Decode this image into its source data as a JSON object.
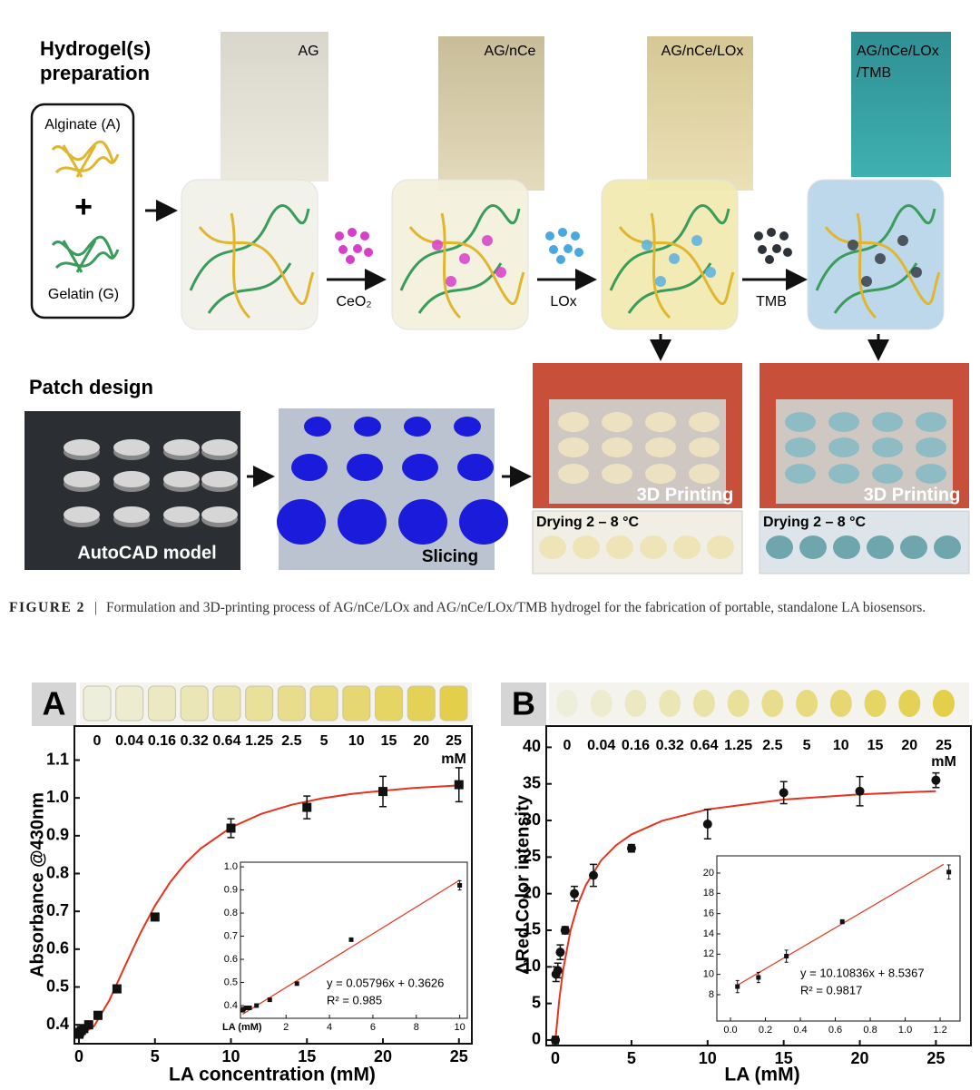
{
  "preparation": {
    "heading": [
      "Hydrogel(s)",
      "preparation"
    ],
    "alginate": "Alginate (A)",
    "plus": "+",
    "gelatin": "Gelatin (G)",
    "photos": [
      [
        "AG"
      ],
      [
        "AG/nCe"
      ],
      [
        "AG/nCe/LOx"
      ],
      [
        "AG/nCe/LOx",
        "/TMB"
      ]
    ],
    "reagents": [
      "CeO₂",
      "LOx",
      "TMB"
    ]
  },
  "patch": {
    "heading": "Patch design",
    "model": "AutoCAD model",
    "slicing": "Slicing",
    "printing": [
      "3D Printing",
      "3D Printing"
    ],
    "drying": [
      "Drying 2 – 8 °C",
      "Drying 2 – 8 °C"
    ]
  },
  "caption": {
    "label": "FIGURE 2",
    "separator": "|",
    "text": "Formulation and 3D-printing process of AG/nCe/LOx and AG/nCe/LOx/TMB hydrogel for the fabrication of portable, standalone LA biosensors."
  },
  "chart_data": [
    {
      "type": "scatter",
      "panel": "A",
      "top_labels": [
        "0",
        "0.04",
        "0.16",
        "0.32",
        "0.64",
        "1.25",
        "2.5",
        "5",
        "10",
        "15",
        "20",
        "25"
      ],
      "top_unit": "mM",
      "xlabel": "LA concentration (mM)",
      "ylabel": "Absorbance @430nm",
      "xlim": [
        -0.3,
        25.85
      ],
      "ylim": [
        0.35,
        1.19
      ],
      "xticks": [
        0,
        5,
        10,
        15,
        20,
        25
      ],
      "yticks": [
        0.4,
        0.5,
        0.6,
        0.7,
        0.8,
        0.9,
        {
          "value": 1,
          "label": "1.0"
        },
        1.1
      ],
      "x": [
        0,
        0.04,
        0.16,
        0.32,
        0.64,
        1.25,
        2.5,
        5,
        10,
        15,
        20,
        25
      ],
      "values": [
        0.375,
        0.38,
        0.385,
        0.39,
        0.4,
        0.425,
        0.495,
        0.685,
        0.92,
        0.975,
        1.017,
        1.035
      ],
      "errors": [
        0.01,
        0.01,
        0.01,
        0.01,
        0.01,
        0.01,
        0.01,
        0.005,
        0.025,
        0.03,
        0.04,
        0.045
      ],
      "marker": "square",
      "color": "#111111",
      "fit_x": [
        0,
        1,
        2,
        3,
        4,
        5,
        6,
        7,
        8,
        10,
        12,
        14,
        16,
        18,
        20,
        22,
        25
      ],
      "fit_values": [
        0.37,
        0.397,
        0.465,
        0.553,
        0.639,
        0.715,
        0.777,
        0.827,
        0.866,
        0.922,
        0.958,
        0.982,
        0.999,
        1.011,
        1.019,
        1.026,
        1.033
      ],
      "fit_color": "#e8321e"
    },
    {
      "type": "scatter",
      "xlabel": "LA (mM)",
      "xlim": [
        -0.1,
        10.35
      ],
      "ylim": [
        0.345,
        1.02
      ],
      "xticks": [
        2,
        4,
        6,
        8,
        10
      ],
      "yticks": [
        0.4,
        0.5,
        0.6,
        0.7,
        0.8,
        0.9,
        {
          "value": 1,
          "label": "1.0"
        }
      ],
      "x": [
        0,
        0.04,
        0.16,
        0.32,
        0.64,
        1.25,
        2.5,
        5,
        10
      ],
      "values": [
        0.38,
        0.385,
        0.39,
        0.39,
        0.4,
        0.425,
        0.495,
        0.685,
        0.92
      ],
      "errors": [
        0.004,
        0.004,
        0.004,
        0.004,
        0.004,
        0.004,
        0.004,
        0.005,
        0.02
      ],
      "marker": "square",
      "color": "#111111",
      "fit_x": [
        0,
        10
      ],
      "fit_values": [
        0.3626,
        0.9422
      ],
      "fit_color": "#e8321e",
      "annotations": [
        "y = 0.05796x + 0.3626",
        "R² = 0.985"
      ]
    },
    {
      "type": "scatter",
      "panel": "B",
      "top_labels": [
        "0",
        "0.04",
        "0.16",
        "0.32",
        "0.64",
        "1.25",
        "2.5",
        "5",
        "10",
        "15",
        "20",
        "25"
      ],
      "top_unit": "mM",
      "xlabel": "LA (mM)",
      "ylabel": "ΔRed Color intensity",
      "xlim": [
        -0.6,
        27.3
      ],
      "ylim": [
        -0.75,
        42.9
      ],
      "xticks": [
        0,
        5,
        10,
        15,
        20,
        25
      ],
      "yticks": [
        0,
        5,
        10,
        15,
        20,
        25,
        30,
        35,
        40
      ],
      "x": [
        0,
        0.04,
        0.16,
        0.32,
        0.64,
        1.25,
        2.5,
        5,
        10,
        15,
        20,
        25
      ],
      "values": [
        0,
        9,
        9.5,
        12,
        15,
        20,
        22.5,
        26.2,
        29.5,
        33.8,
        34,
        35.5
      ],
      "errors": [
        0.5,
        1,
        1,
        1,
        0.5,
        1,
        1.5,
        0.5,
        2,
        1.5,
        2,
        1
      ],
      "marker": "circle",
      "color": "#111111",
      "fit_x": [
        0,
        0.25,
        0.5,
        1,
        1.5,
        2,
        3,
        4,
        5,
        7,
        10,
        15,
        20,
        25
      ],
      "fit_values": [
        0,
        5.47,
        9.5,
        15.02,
        18.63,
        21.18,
        24.53,
        26.64,
        28.09,
        29.95,
        31.52,
        32.85,
        33.57,
        34.01
      ],
      "fit_color": "#e8321e"
    },
    {
      "type": "scatter",
      "xlim": [
        -0.078,
        1.314
      ],
      "ylim": [
        5.4,
        21.7
      ],
      "xticks": [
        {
          "value": 0,
          "label": "0.0"
        },
        0.2,
        0.4,
        0.6,
        0.8,
        {
          "value": 1,
          "label": "1.0"
        },
        1.2
      ],
      "yticks": [
        8,
        10,
        12,
        14,
        16,
        18,
        20
      ],
      "x": [
        0.04,
        0.16,
        0.32,
        0.64,
        1.25
      ],
      "values": [
        8.8,
        9.7,
        11.8,
        15.2,
        20.1
      ],
      "errors": [
        0.6,
        0.5,
        0.6,
        0.2,
        0.7
      ],
      "marker": "square",
      "color": "#111111",
      "fit_x": [
        0.04,
        1.22
      ],
      "fit_values": [
        8.94,
        20.87
      ],
      "fit_color": "#e8321e",
      "annotations": [
        "y = 10.10836x + 8.5367",
        "R² = 0.9817"
      ]
    }
  ]
}
